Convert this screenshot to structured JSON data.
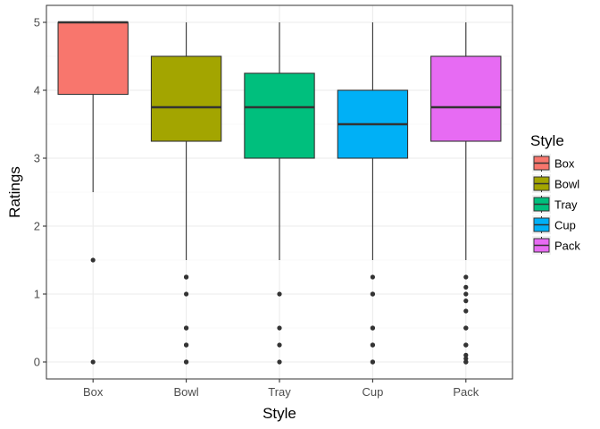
{
  "chart_data": {
    "type": "boxplot",
    "xlabel": "Style",
    "ylabel": "Ratings",
    "ylim": [
      -0.25,
      5.25
    ],
    "yticks": [
      0,
      1,
      2,
      3,
      4,
      5
    ],
    "grid": true,
    "legend": {
      "title": "Style",
      "position": "right"
    },
    "categories": [
      "Box",
      "Bowl",
      "Tray",
      "Cup",
      "Pack"
    ],
    "colors": [
      "#F8766D",
      "#A3A500",
      "#00BF7D",
      "#00B0F6",
      "#E76BF3"
    ],
    "series": [
      {
        "name": "Box",
        "whisker_low": 2.5,
        "q1": 3.94,
        "median": 5.0,
        "q3": 5.0,
        "whisker_high": 5.0,
        "outliers": [
          1.5,
          0
        ]
      },
      {
        "name": "Bowl",
        "whisker_low": 1.5,
        "q1": 3.25,
        "median": 3.75,
        "q3": 4.5,
        "whisker_high": 5.0,
        "outliers": [
          1.25,
          1.25,
          1.0,
          0.5,
          0.5,
          0.25,
          0.25,
          0,
          0
        ]
      },
      {
        "name": "Tray",
        "whisker_low": 1.5,
        "q1": 3.0,
        "median": 3.75,
        "q3": 4.25,
        "whisker_high": 5.0,
        "outliers": [
          1.0,
          0.5,
          0.25,
          0
        ]
      },
      {
        "name": "Cup",
        "whisker_low": 1.5,
        "q1": 3.0,
        "median": 3.5,
        "q3": 4.0,
        "whisker_high": 5.0,
        "outliers": [
          1.25,
          1.0,
          1.0,
          0.5,
          0.5,
          0.25,
          0.25,
          0,
          0
        ]
      },
      {
        "name": "Pack",
        "whisker_low": 1.5,
        "q1": 3.25,
        "median": 3.75,
        "q3": 4.5,
        "whisker_high": 5.0,
        "outliers": [
          1.25,
          1.1,
          1.0,
          0.9,
          0.75,
          0.5,
          0.5,
          0.25,
          0.25,
          0.1,
          0.05,
          0,
          0
        ]
      }
    ]
  }
}
